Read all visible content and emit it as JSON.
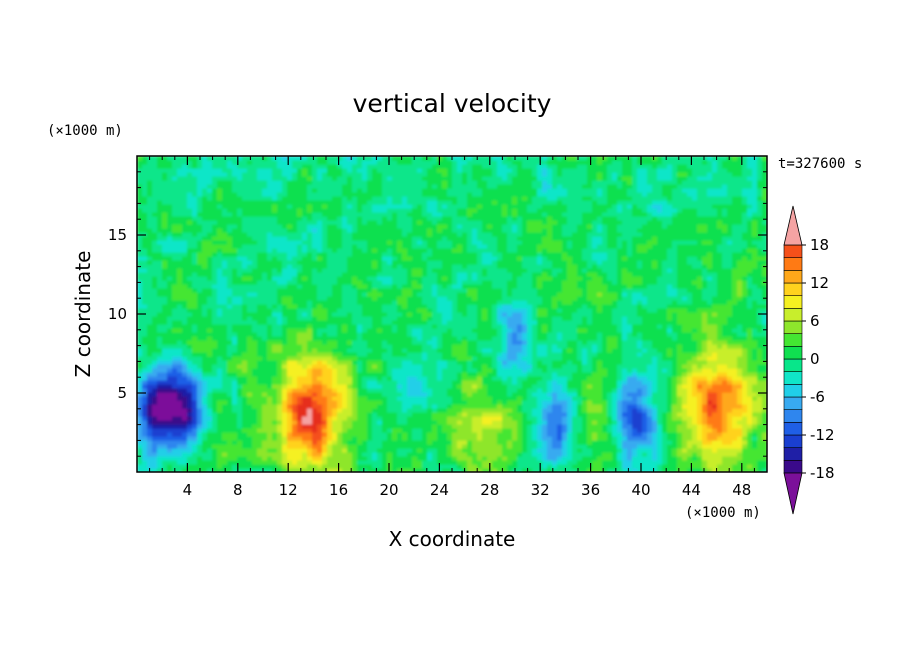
{
  "chart_data": {
    "type": "heatmap",
    "title": "vertical velocity",
    "xlabel": "X coordinate",
    "ylabel": "Z coordinate",
    "x_units": "(×1000 m)",
    "y_units": "(×1000 m)",
    "time_label": "t=327600 s",
    "xlim": [
      0,
      50
    ],
    "ylim": [
      0,
      20
    ],
    "x_ticks": [
      4,
      8,
      12,
      16,
      20,
      24,
      28,
      32,
      36,
      40,
      44,
      48
    ],
    "y_ticks": [
      5,
      10,
      15
    ],
    "colorbar": {
      "levels": [
        -20,
        -18,
        -16,
        -14,
        -12,
        -10,
        -8,
        -6,
        -4,
        -2,
        0,
        2,
        4,
        6,
        8,
        10,
        12,
        14,
        16,
        18,
        20
      ],
      "tick_labels": [
        "18",
        "12",
        "6",
        "0",
        "-6",
        "-12",
        "-18"
      ],
      "tick_values": [
        18,
        12,
        6,
        0,
        -6,
        -12,
        -18
      ],
      "colors": [
        "#7b109a",
        "#3a0a8a",
        "#1f1fa6",
        "#1a3fd0",
        "#1f5fe6",
        "#2f86ee",
        "#38aaf0",
        "#20cfe8",
        "#10e6c8",
        "#08e68a",
        "#10e050",
        "#44e632",
        "#8ee62c",
        "#c8ee2c",
        "#f5f021",
        "#ffd21e",
        "#ffa81a",
        "#ff7a14",
        "#f5501a",
        "#e62e1e",
        "#f5a3a3"
      ]
    },
    "features": [
      {
        "kind": "updraft",
        "x": 13.8,
        "z": 3.8,
        "peak": 18
      },
      {
        "kind": "updraft",
        "x": 46,
        "z": 4.2,
        "peak": 16
      },
      {
        "kind": "updraft",
        "x": 27.5,
        "z": 3,
        "peak": 6
      },
      {
        "kind": "updraft",
        "x": 35,
        "z": 2.5,
        "peak": 4
      },
      {
        "kind": "downdraft",
        "x": 1.5,
        "z": 4,
        "peak": -16
      },
      {
        "kind": "downdraft",
        "x": 3.6,
        "z": 4,
        "peak": -16
      },
      {
        "kind": "downdraft",
        "x": 33.5,
        "z": 3,
        "peak": -14
      },
      {
        "kind": "downdraft",
        "x": 39.5,
        "z": 3.5,
        "peak": -12
      },
      {
        "kind": "downdraft",
        "x": 30,
        "z": 8,
        "peak": -8
      },
      {
        "kind": "downdraft",
        "x": 22,
        "z": 5.5,
        "peak": -4
      }
    ]
  }
}
